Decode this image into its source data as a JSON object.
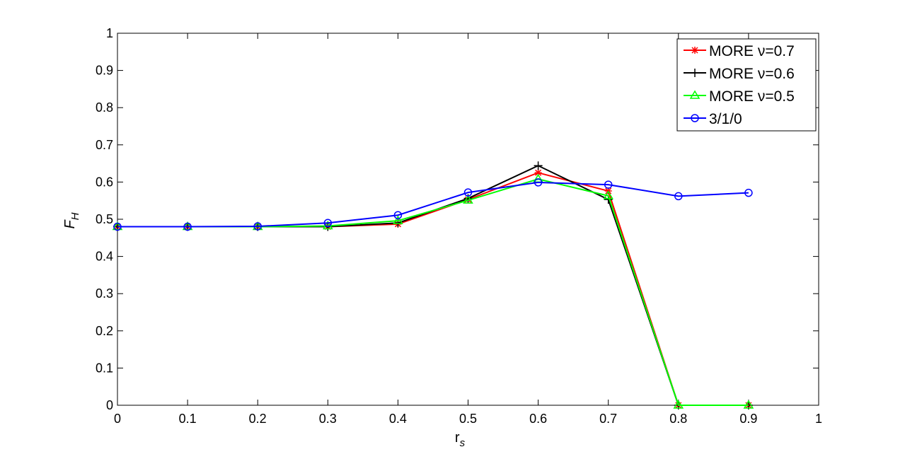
{
  "chart_data": {
    "type": "line",
    "title": "",
    "xlabel": "r",
    "xlabel_sub": "s",
    "ylabel": "F",
    "ylabel_sub": "H",
    "xlim": [
      0,
      1
    ],
    "ylim": [
      0,
      1
    ],
    "xticks": [
      "0",
      "0.1",
      "0.2",
      "0.3",
      "0.4",
      "0.5",
      "0.6",
      "0.7",
      "0.8",
      "0.9",
      "1"
    ],
    "yticks": [
      "0",
      "0.1",
      "0.2",
      "0.3",
      "0.4",
      "0.5",
      "0.6",
      "0.7",
      "0.8",
      "0.9",
      "1"
    ],
    "grid": false,
    "legend_position": "top-right",
    "x": [
      0,
      0.1,
      0.2,
      0.3,
      0.4,
      0.5,
      0.6,
      0.7,
      0.8,
      0.9
    ],
    "series": [
      {
        "name": "MORE ν=0.7",
        "color": "#ff0000",
        "marker": "asterisk",
        "values": [
          0.48,
          0.48,
          0.48,
          0.48,
          0.487,
          0.553,
          0.625,
          0.576,
          0.0,
          0.0
        ]
      },
      {
        "name": "MORE ν=0.6",
        "color": "#000000",
        "marker": "plus",
        "values": [
          0.48,
          0.48,
          0.48,
          0.48,
          0.49,
          0.556,
          0.644,
          0.553,
          0.0,
          0.0
        ]
      },
      {
        "name": "MORE ν=0.5",
        "color": "#00ff00",
        "marker": "triangle",
        "values": [
          0.48,
          0.48,
          0.48,
          0.482,
          0.496,
          0.551,
          0.608,
          0.563,
          0.0,
          0.0
        ]
      },
      {
        "name": "3/1/0",
        "color": "#0000ff",
        "marker": "circle",
        "values": [
          0.48,
          0.48,
          0.481,
          0.49,
          0.511,
          0.572,
          0.599,
          0.593,
          0.562,
          0.571
        ]
      }
    ]
  }
}
